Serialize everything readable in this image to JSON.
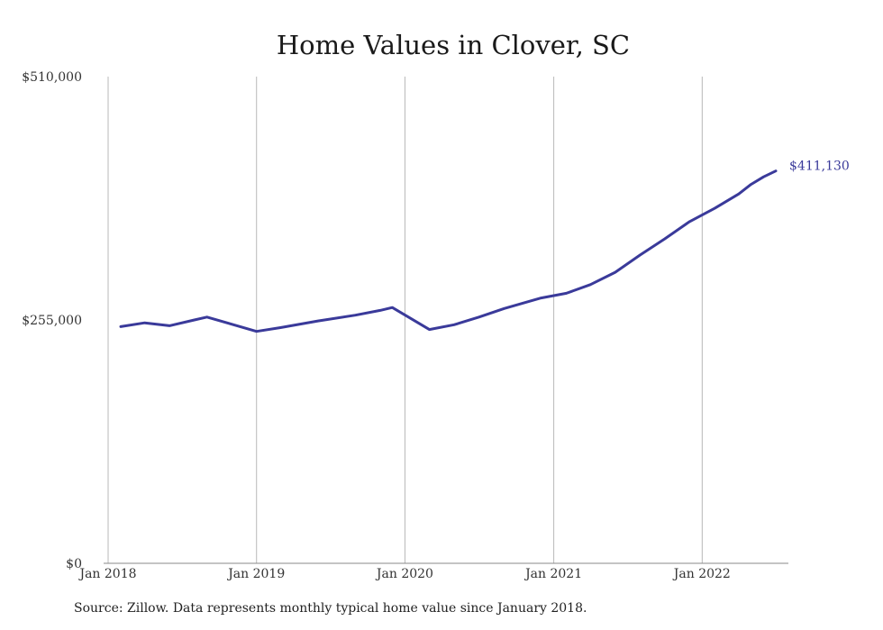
{
  "colors": {
    "line": "#3a3a9a",
    "grid": "#b8b8b8",
    "axis": "#8a8a8a"
  },
  "chart_data": {
    "type": "line",
    "title": "Home Values in Clover, SC",
    "xlabel": "",
    "ylabel": "",
    "ylim": [
      0,
      510000
    ],
    "xlim": [
      "2018-01-01",
      "2022-08-01"
    ],
    "y_ticks": [
      {
        "value": 0,
        "label": "$0"
      },
      {
        "value": 255000,
        "label": "$255,000"
      },
      {
        "value": 510000,
        "label": "$510,000"
      }
    ],
    "x_ticks": [
      {
        "value": "2018-01-01",
        "label": "Jan 2018"
      },
      {
        "value": "2019-01-01",
        "label": "Jan 2019"
      },
      {
        "value": "2020-01-01",
        "label": "Jan 2020"
      },
      {
        "value": "2021-01-01",
        "label": "Jan 2021"
      },
      {
        "value": "2022-01-01",
        "label": "Jan 2022"
      }
    ],
    "grid": {
      "vertical": true,
      "horizontal": false
    },
    "legend": "none",
    "end_label": "$411,130",
    "series": [
      {
        "x": [
          "2018-02-01",
          "2018-04-01",
          "2018-06-01",
          "2018-08-01",
          "2018-09-01",
          "2019-01-01",
          "2019-03-01",
          "2019-06-01",
          "2019-09-01",
          "2019-11-01",
          "2019-12-01",
          "2020-03-01",
          "2020-05-01",
          "2020-07-01",
          "2020-09-01",
          "2020-12-01",
          "2021-02-01",
          "2021-04-01",
          "2021-06-01",
          "2021-08-01",
          "2021-10-01",
          "2021-12-01",
          "2022-02-01",
          "2022-04-01",
          "2022-05-01",
          "2022-06-01",
          "2022-07-01"
        ],
        "y": [
          248000,
          252000,
          249000,
          255000,
          258000,
          243000,
          247000,
          254000,
          260000,
          265000,
          268000,
          245000,
          250000,
          258000,
          267000,
          278000,
          283000,
          292000,
          305000,
          323000,
          340000,
          358000,
          372000,
          387000,
          397000,
          405000,
          411130
        ]
      }
    ]
  },
  "source_note": "Source: Zillow. Data represents monthly typical home value since January 2018."
}
